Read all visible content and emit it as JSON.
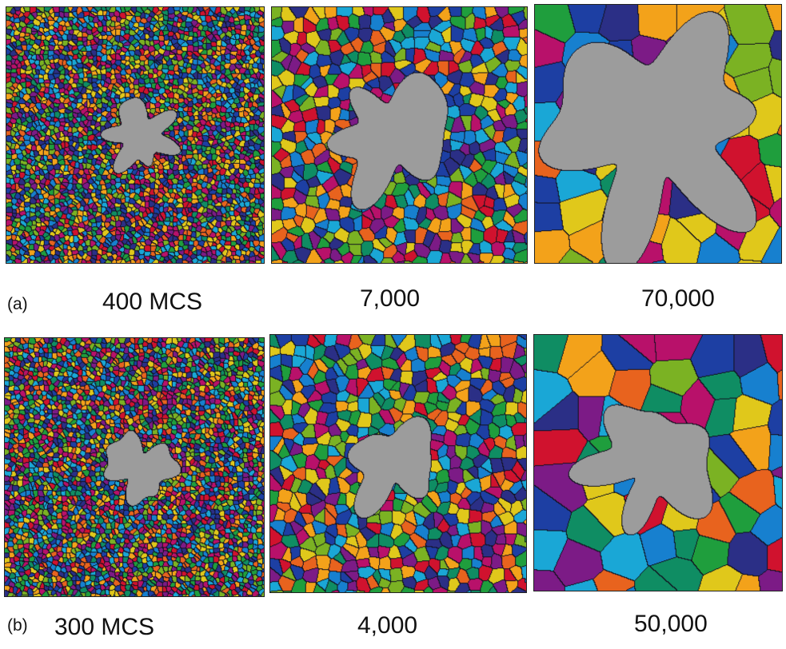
{
  "figure": {
    "rows": [
      {
        "row_label": "(a)",
        "panels": [
          {
            "time_label": "400 MCS",
            "grain_density": "very-fine",
            "pore_fraction": 0.06
          },
          {
            "time_label": "7,000",
            "grain_density": "fine",
            "pore_fraction": 0.18
          },
          {
            "time_label": "70,000",
            "grain_density": "coarse",
            "pore_fraction": 0.62
          }
        ]
      },
      {
        "row_label": "(b)",
        "panels": [
          {
            "time_label": "300 MCS",
            "grain_density": "very-fine",
            "pore_fraction": 0.06
          },
          {
            "time_label": "4,000",
            "grain_density": "fine",
            "pore_fraction": 0.1
          },
          {
            "time_label": "50,000",
            "grain_density": "coarse",
            "pore_fraction": 0.21
          }
        ]
      }
    ],
    "colors": {
      "grain_palette": [
        "#d0122e",
        "#b8116a",
        "#7c1b86",
        "#2b2f86",
        "#1d3fa3",
        "#1780cf",
        "#1aa7d6",
        "#0f8d63",
        "#1f9e3d",
        "#7bb223",
        "#e0c81b",
        "#f3a21a",
        "#e8631e"
      ],
      "pore": "#9c9c9c",
      "grain_boundary": "#121220"
    }
  }
}
